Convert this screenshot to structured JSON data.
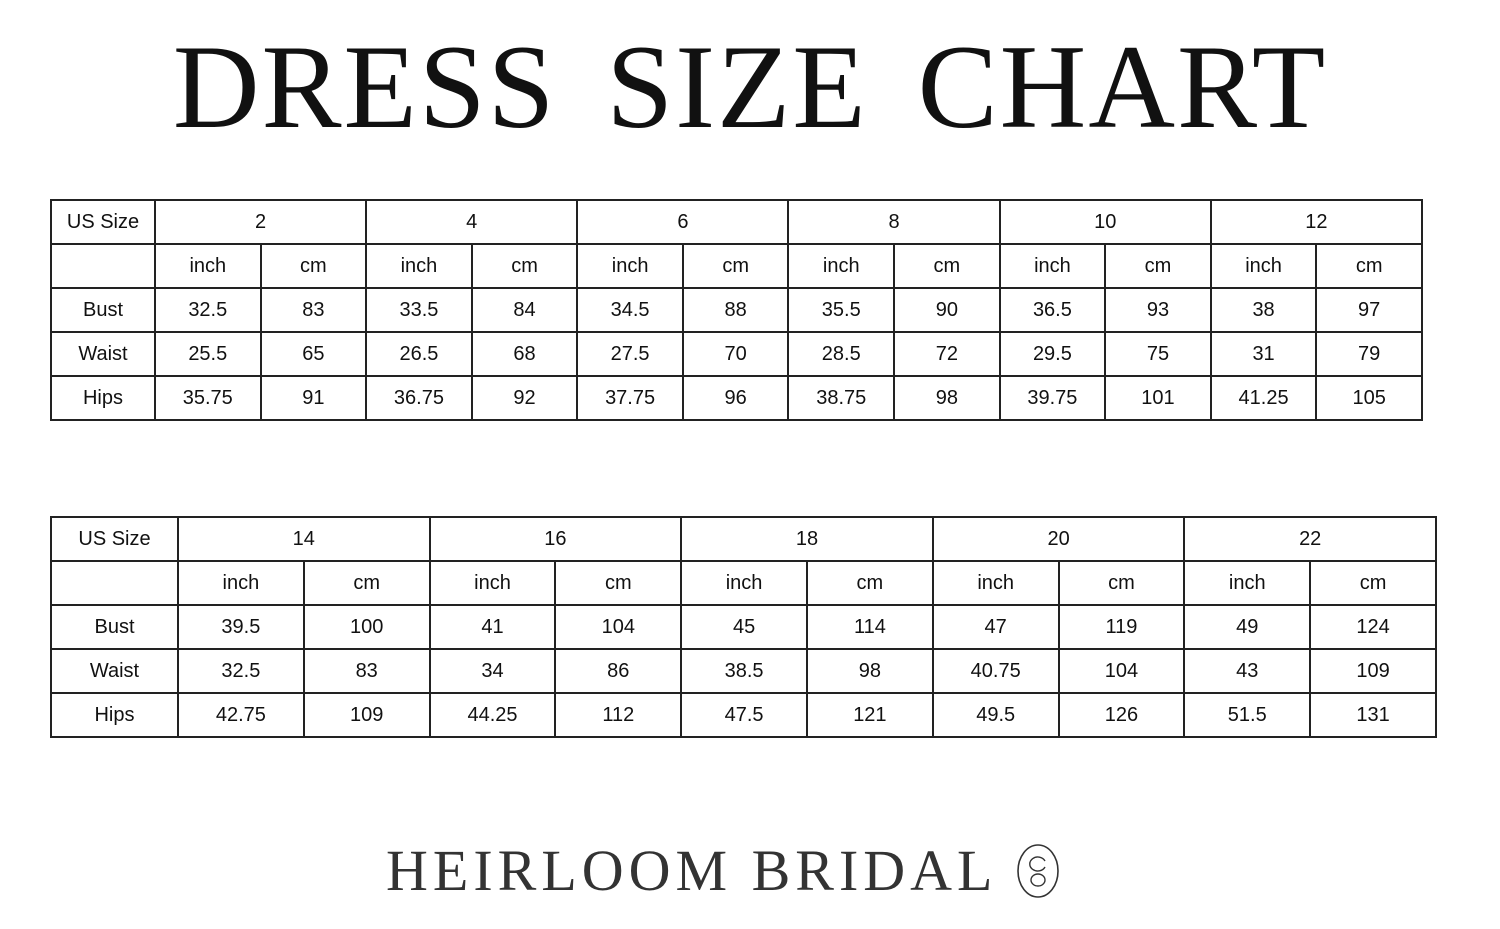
{
  "title": "DRESS SIZE CHART",
  "tables": [
    {
      "header_label": "US Size",
      "sizes": [
        "2",
        "4",
        "6",
        "8",
        "10",
        "12"
      ],
      "units": [
        "inch",
        "cm"
      ],
      "rows": [
        {
          "label": "Bust",
          "values": [
            "32.5",
            "83",
            "33.5",
            "84",
            "34.5",
            "88",
            "35.5",
            "90",
            "36.5",
            "93",
            "38",
            "97"
          ]
        },
        {
          "label": "Waist",
          "values": [
            "25.5",
            "65",
            "26.5",
            "68",
            "27.5",
            "70",
            "28.5",
            "72",
            "29.5",
            "75",
            "31",
            "79"
          ]
        },
        {
          "label": "Hips",
          "values": [
            "35.75",
            "91",
            "36.75",
            "92",
            "37.75",
            "96",
            "38.75",
            "98",
            "39.75",
            "101",
            "41.25",
            "105"
          ]
        }
      ]
    },
    {
      "header_label": "US Size",
      "sizes": [
        "14",
        "16",
        "18",
        "20",
        "22"
      ],
      "units": [
        "inch",
        "cm"
      ],
      "rows": [
        {
          "label": "Bust",
          "values": [
            "39.5",
            "100",
            "41",
            "104",
            "45",
            "114",
            "47",
            "119",
            "49",
            "124"
          ]
        },
        {
          "label": "Waist",
          "values": [
            "32.5",
            "83",
            "34",
            "86",
            "38.5",
            "98",
            "40.75",
            "104",
            "43",
            "109"
          ]
        },
        {
          "label": "Hips",
          "values": [
            "42.75",
            "109",
            "44.25",
            "112",
            "47.5",
            "121",
            "49.5",
            "126",
            "51.5",
            "131"
          ]
        }
      ]
    }
  ],
  "brand": "HEIRLOOM BRIDAL"
}
